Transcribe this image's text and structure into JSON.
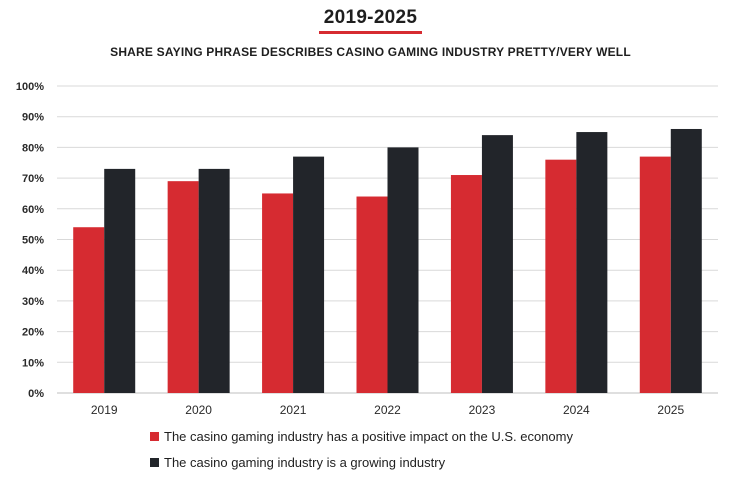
{
  "title": "2019-2025",
  "subtitle": "SHARE SAYING PHRASE DESCRIBES CASINO GAMING INDUSTRY PRETTY/VERY WELL",
  "colors": {
    "series1": "#d62b31",
    "series2": "#22252a",
    "grid": "#d9d9d9",
    "axis": "#bfbfbf",
    "title_rule": "#d62b31"
  },
  "chart_data": {
    "type": "bar",
    "categories": [
      "2019",
      "2020",
      "2021",
      "2022",
      "2023",
      "2024",
      "2025"
    ],
    "series": [
      {
        "name": "The casino gaming industry has a positive impact on the U.S. economy",
        "values": [
          54,
          69,
          65,
          64,
          71,
          76,
          77
        ]
      },
      {
        "name": "The casino gaming industry is a growing industry",
        "values": [
          73,
          73,
          77,
          80,
          84,
          85,
          86
        ]
      }
    ],
    "y_ticks": [
      "0%",
      "10%",
      "20%",
      "30%",
      "40%",
      "50%",
      "60%",
      "70%",
      "80%",
      "90%",
      "100%"
    ],
    "ylim": [
      0,
      100
    ],
    "grid": true,
    "legend_position": "bottom",
    "title": "2019-2025",
    "subtitle": "SHARE SAYING PHRASE DESCRIBES CASINO GAMING INDUSTRY PRETTY/VERY WELL"
  }
}
